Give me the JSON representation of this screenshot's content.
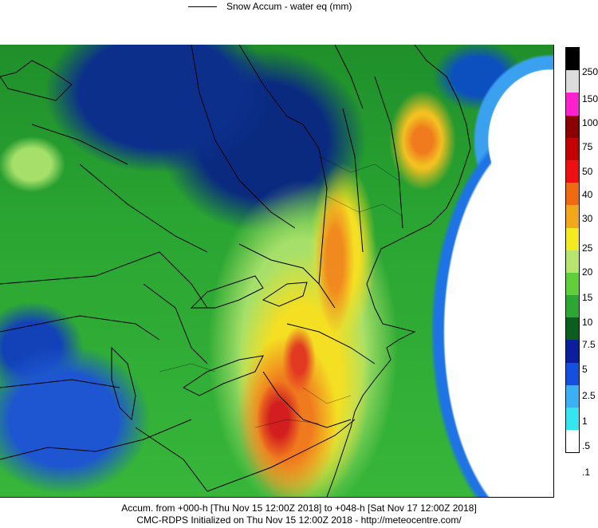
{
  "legend_top": {
    "label": "Snow Accum - water eq (mm)"
  },
  "colorbar": {
    "labels": [
      "250",
      "150",
      "100",
      "75",
      "50",
      "40",
      "30",
      "25",
      "20",
      "15",
      "10",
      "7.5",
      "5",
      "2.5",
      "1",
      ".5",
      ".1"
    ],
    "colors": [
      "#000000",
      "#dcdcdc",
      "#ff22cc",
      "#8c0000",
      "#c40000",
      "#ee1010",
      "#f06a10",
      "#f2a818",
      "#f4ea20",
      "#b6e66e",
      "#5fcf3a",
      "#2aa832",
      "#0b5e1e",
      "#0a1e9e",
      "#1450e0",
      "#3ab0f5",
      "#33e6f0",
      "#ffffff"
    ]
  },
  "footer": {
    "line1": "Accum. from +000-h [Thu Nov 15 12:00Z 2018] to +048-h [Sat Nov 17 12:00Z 2018]",
    "line2": "CMC-RDPS Initialized on Thu Nov 15 12:00Z 2018 - http://meteocentre.com/"
  }
}
